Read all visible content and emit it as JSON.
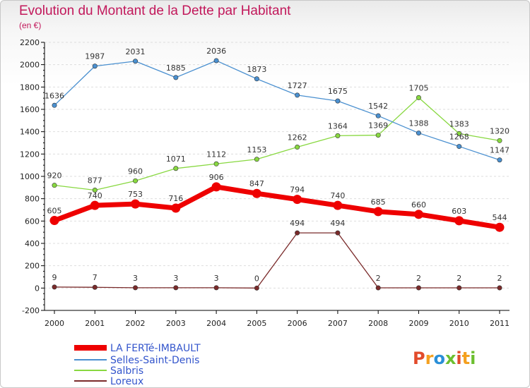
{
  "title": "Evolution du Montant de la Dette par Habitant",
  "subtitle": "(en €)",
  "logo": "Proxiti",
  "colors": {
    "title": "#c2185b",
    "axis": "#000000",
    "grid": "#dddddd"
  },
  "chart_data": {
    "type": "line",
    "x": [
      "2000",
      "2001",
      "2002",
      "2003",
      "2004",
      "2005",
      "2006",
      "2007",
      "2008",
      "2009",
      "2010",
      "2011"
    ],
    "ylim": [
      -200,
      2200
    ],
    "yticks": [
      -200,
      0,
      200,
      400,
      600,
      800,
      1000,
      1200,
      1400,
      1600,
      1800,
      2000,
      2200
    ],
    "grid": "horizontal dashed",
    "legend_position": "bottom-left",
    "series": [
      {
        "name": "LA FERTé-IMBAULT",
        "color": "#ee0000",
        "values": [
          605,
          740,
          753,
          716,
          906,
          847,
          794,
          740,
          685,
          660,
          603,
          544
        ]
      },
      {
        "name": "Selles-Saint-Denis",
        "color": "#4a90d0",
        "values": [
          1636,
          1987,
          2031,
          1885,
          2036,
          1873,
          1727,
          1675,
          1542,
          1388,
          1268,
          1147
        ]
      },
      {
        "name": "Salbris",
        "color": "#88d840",
        "values": [
          920,
          877,
          960,
          1071,
          1112,
          1153,
          1262,
          1364,
          1369,
          1705,
          1383,
          1320
        ]
      },
      {
        "name": "Loreux",
        "color": "#7a2a2a",
        "values": [
          9,
          7,
          3,
          3,
          3,
          0,
          494,
          494,
          2,
          2,
          2,
          2
        ]
      }
    ]
  }
}
